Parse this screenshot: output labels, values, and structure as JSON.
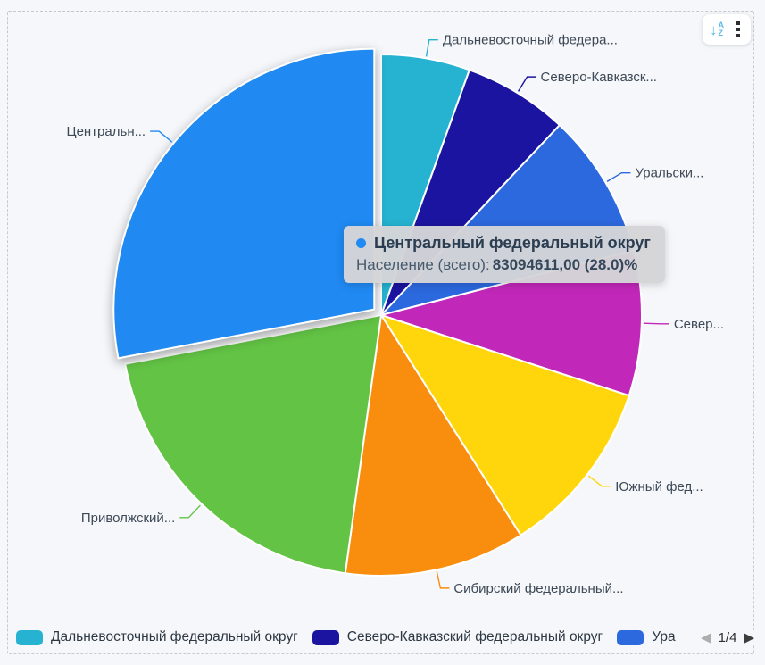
{
  "colors": {
    "background": "#f6f7fa",
    "slice_stroke": "#ffffff",
    "label_text": "#3d4956"
  },
  "toolbar": {
    "sort_letters": {
      "a": "A",
      "z": "Z"
    },
    "sort_arrow": "↓"
  },
  "chart_data": {
    "type": "pie",
    "measure_label": "Население (всего)",
    "legend_position": "bottom",
    "start_angle_deg": 0,
    "series": [
      {
        "name": "Дальневосточный федеральный округ",
        "callout": "Дальневосточный федера...",
        "percent": 5.5,
        "color": "#25b3d1",
        "exploded": false
      },
      {
        "name": "Северо-Кавказский федеральный округ",
        "callout": "Северо-Кавказск...",
        "percent": 6.5,
        "color": "#1b14a0",
        "exploded": false
      },
      {
        "name": "Уральский федеральный округ",
        "callout": "Уральски...",
        "percent": 9.0,
        "color": "#2c68de",
        "exploded": false
      },
      {
        "name": "Северо-Западный федеральный округ",
        "callout": "Север...",
        "percent": 9.0,
        "color": "#c127b8",
        "exploded": false
      },
      {
        "name": "Южный федеральный округ",
        "callout": "Южный фед...",
        "percent": 11.0,
        "color": "#ffd60b",
        "exploded": false
      },
      {
        "name": "Сибирский федеральный округ",
        "callout": "Сибирский федеральный...",
        "percent": 11.2,
        "color": "#f98d0d",
        "exploded": false
      },
      {
        "name": "Приволжский федеральный округ",
        "callout": "Приволжский...",
        "percent": 19.8,
        "color": "#62c344",
        "exploded": false
      },
      {
        "name": "Центральный федеральный округ",
        "callout": "Центральн...",
        "percent": 28.0,
        "color": "#2089f2",
        "exploded": true
      }
    ]
  },
  "tooltip": {
    "title": "Центральный федеральный округ",
    "label": "Население (всего):",
    "value": "83094611,00 (28.0)%",
    "dot_color": "#2089f2"
  },
  "legend": {
    "items": [
      {
        "label": "Дальневосточный федеральный округ",
        "color": "#25b3d1"
      },
      {
        "label": "Северо-Кавказский федеральный округ",
        "color": "#1b14a0"
      },
      {
        "label": "Ура",
        "color": "#2c68de"
      }
    ],
    "pagination": {
      "prev": "◀",
      "page": "1/4",
      "next": "▶"
    }
  }
}
